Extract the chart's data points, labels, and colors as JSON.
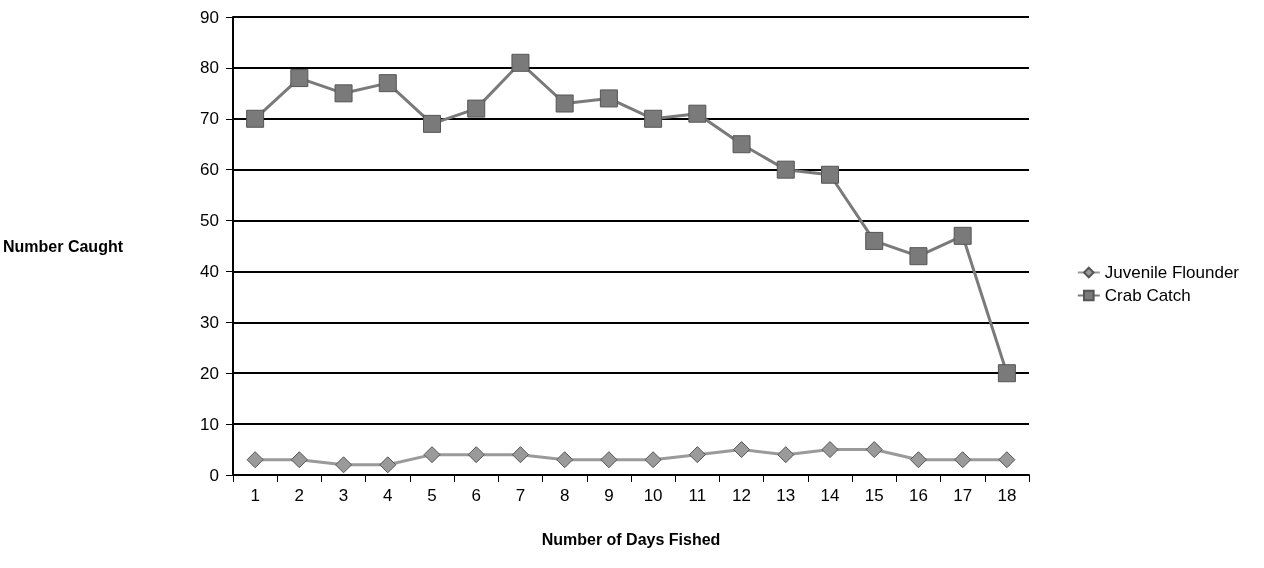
{
  "chart_data": {
    "type": "line",
    "xlabel": "Number of Days Fished",
    "ylabel": "Number Caught",
    "x": [
      1,
      2,
      3,
      4,
      5,
      6,
      7,
      8,
      9,
      10,
      11,
      12,
      13,
      14,
      15,
      16,
      17,
      18
    ],
    "xlim": [
      0.5,
      18.5
    ],
    "xticks": [
      1,
      2,
      3,
      4,
      5,
      6,
      7,
      8,
      9,
      10,
      11,
      12,
      13,
      14,
      15,
      16,
      17,
      18,
      {
        "value": 0.5,
        "label": null
      },
      {
        "value": 1.5,
        "label": null
      },
      {
        "value": 2.5,
        "label": null
      },
      {
        "value": 3.5,
        "label": null
      },
      {
        "value": 4.5,
        "label": null
      },
      {
        "value": 5.5,
        "label": null
      },
      {
        "value": 6.5,
        "label": null
      },
      {
        "value": 7.5,
        "label": null
      },
      {
        "value": 8.5,
        "label": null
      },
      {
        "value": 9.5,
        "label": null
      },
      {
        "value": 10.5,
        "label": null
      },
      {
        "value": 11.5,
        "label": null
      },
      {
        "value": 12.5,
        "label": null
      },
      {
        "value": 13.5,
        "label": null
      },
      {
        "value": 14.5,
        "label": null
      },
      {
        "value": 15.5,
        "label": null
      },
      {
        "value": 16.5,
        "label": null
      },
      {
        "value": 17.5,
        "label": null
      },
      {
        "value": 18.5,
        "label": null
      }
    ],
    "series": [
      {
        "name": "Juvenile Flounder",
        "color": "#9a9a9a",
        "marker": "diamond",
        "values": [
          3,
          3,
          2,
          2,
          4,
          4,
          4,
          3,
          3,
          3,
          4,
          5,
          4,
          5,
          5,
          3,
          3,
          3
        ]
      },
      {
        "name": "Crab Catch",
        "color": "#7a7a7a",
        "marker": "square",
        "values": [
          70,
          78,
          75,
          77,
          69,
          72,
          81,
          73,
          74,
          70,
          71,
          65,
          60,
          59,
          46,
          43,
          47,
          20
        ]
      }
    ],
    "ylim": [
      0,
      90
    ],
    "yticks": [
      0,
      10,
      20,
      30,
      40,
      50,
      60,
      70,
      80,
      90
    ],
    "grid": "y",
    "legend": "right",
    "line_style": "solid"
  }
}
